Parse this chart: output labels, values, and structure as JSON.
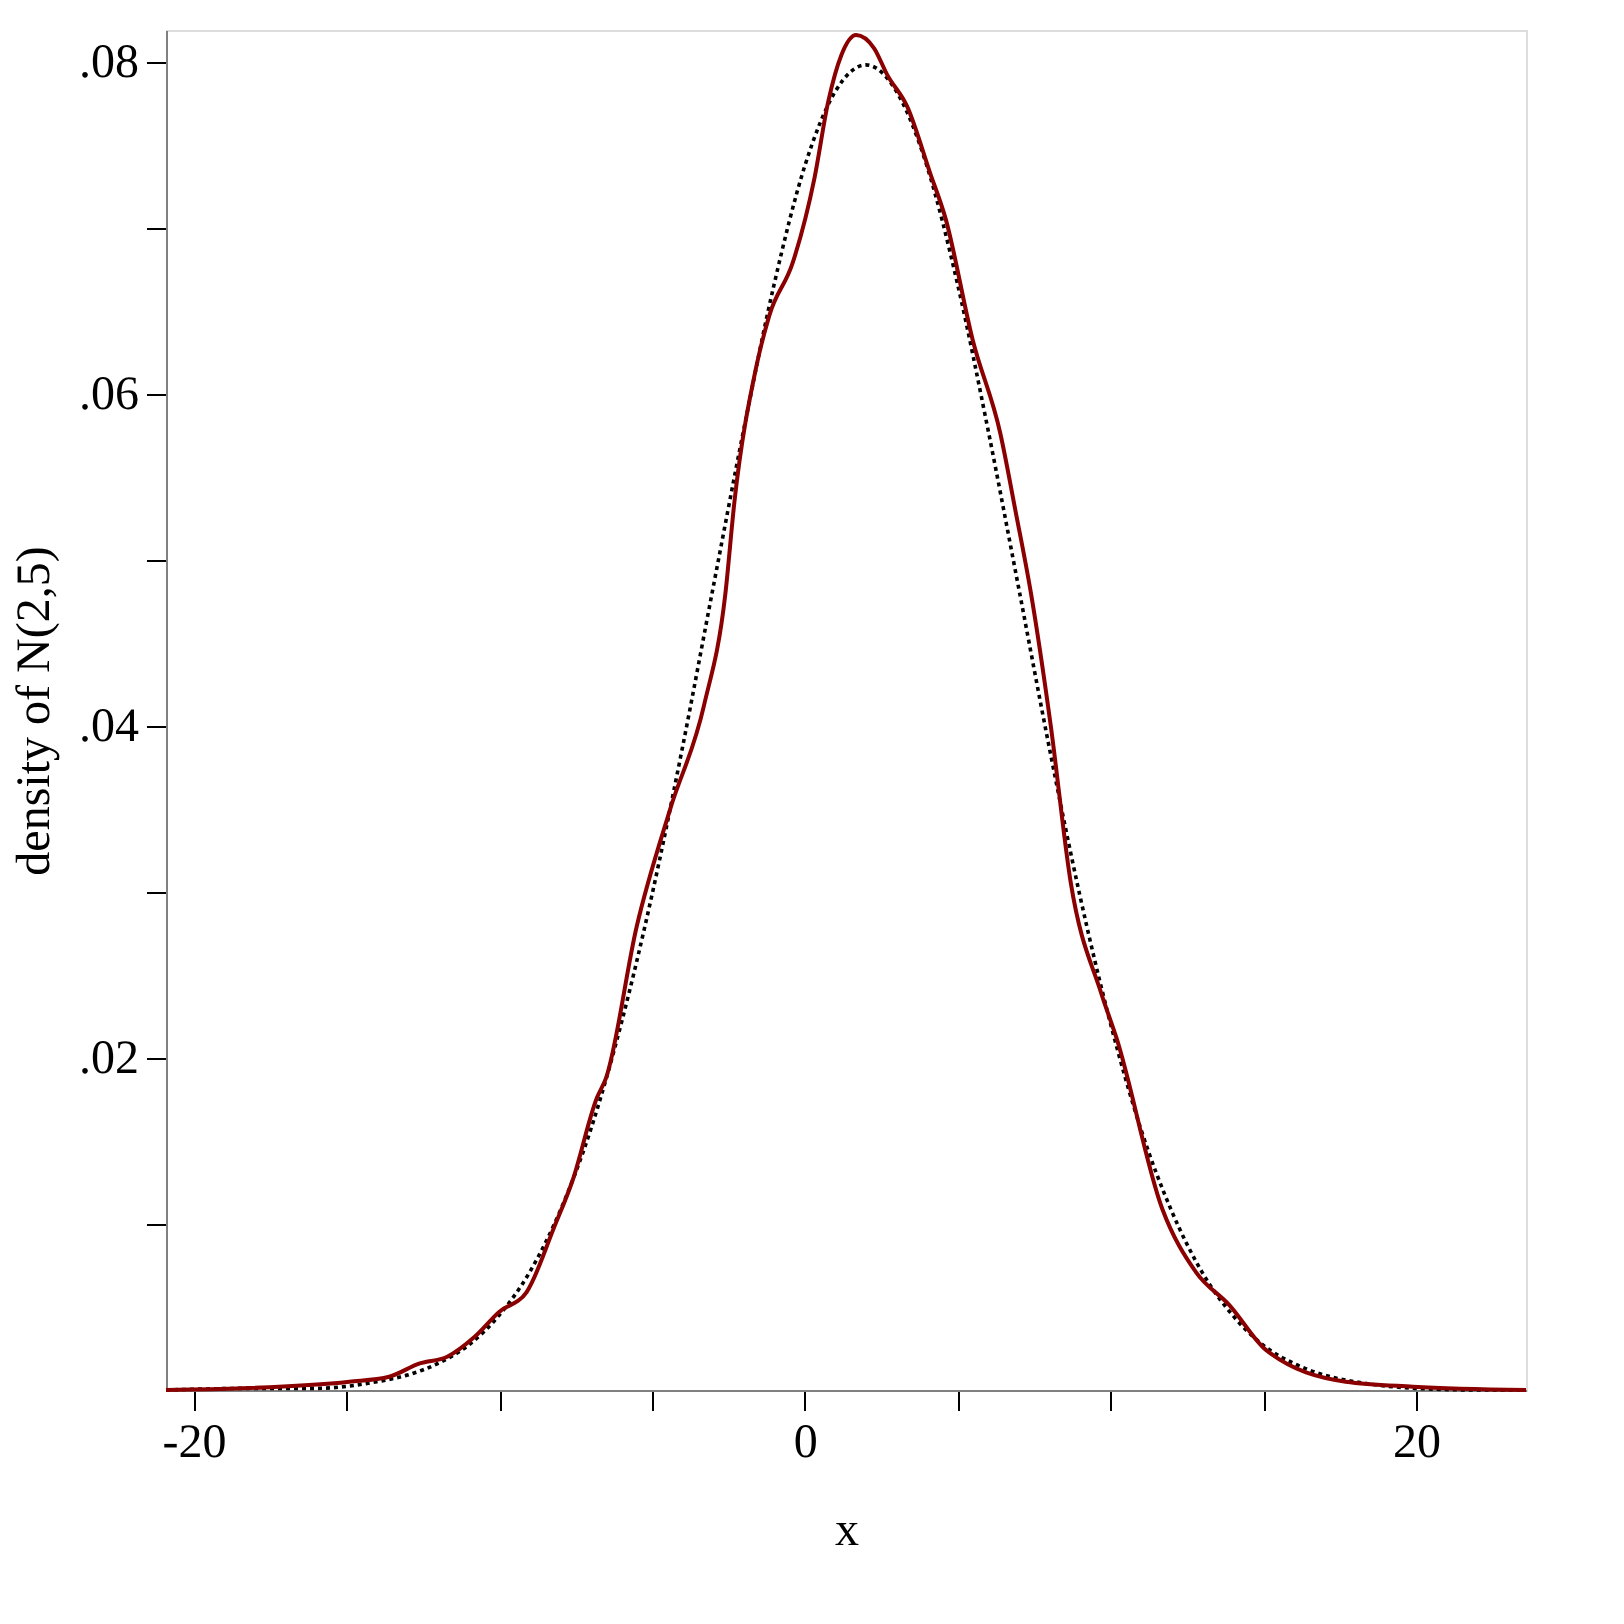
{
  "chart_data": {
    "type": "line",
    "xlabel": "x",
    "ylabel": "density of N(2,5)",
    "xlim": [
      -20.9,
      23.6
    ],
    "ylim": [
      0,
      0.0819
    ],
    "xticks": [
      -20,
      {
        "value": -15,
        "label": null
      },
      {
        "value": -10,
        "label": null
      },
      {
        "value": -5,
        "label": null
      },
      0,
      {
        "value": 5,
        "label": null
      },
      {
        "value": 10,
        "label": null
      },
      {
        "value": 15,
        "label": null
      },
      20
    ],
    "yticks": [
      {
        "value": 0.01,
        "label": null
      },
      {
        "value": 0.02,
        "label": ".02"
      },
      {
        "value": 0.03,
        "label": null
      },
      {
        "value": 0.04,
        "label": ".04"
      },
      {
        "value": 0.05,
        "label": null
      },
      {
        "value": 0.06,
        "label": ".06"
      },
      {
        "value": 0.07,
        "label": null
      },
      {
        "value": 0.08,
        "label": ".08"
      }
    ],
    "grid": false,
    "series": [
      {
        "color": "#000000",
        "line_style": "dotted",
        "x": [
          -20.9,
          -18,
          -16,
          -14,
          -13,
          -12,
          -11,
          -10,
          -9,
          -8,
          -7,
          -6,
          -5,
          -4,
          -3,
          -2,
          -1,
          0,
          1,
          2,
          3,
          4,
          5,
          6,
          7,
          8,
          9,
          10,
          11,
          12,
          13,
          14,
          15,
          16,
          17,
          18,
          20,
          22,
          23.6
        ],
        "values": [
          0,
          0.0001,
          0.0001,
          0.0005,
          0.0009,
          0.0016,
          0.0027,
          0.0045,
          0.0071,
          0.0108,
          0.0157,
          0.0221,
          0.0298,
          0.0387,
          0.0483,
          0.0578,
          0.0666,
          0.0737,
          0.0782,
          0.0798,
          0.0782,
          0.0737,
          0.0666,
          0.0578,
          0.0483,
          0.0387,
          0.0298,
          0.0221,
          0.0157,
          0.0108,
          0.0071,
          0.0045,
          0.0027,
          0.0016,
          0.0009,
          0.0005,
          0.0001,
          0,
          0
        ]
      },
      {
        "color": "#8b0000",
        "line_style": "solid",
        "x": [
          -20.9,
          -18.4,
          -14.9,
          -13.6,
          -12.6,
          -11.7,
          -10.8,
          -10,
          -9.1,
          -8.2,
          -7.6,
          -6.8,
          -6.5,
          -5.5,
          -4.4,
          -3.3,
          -2.6,
          -2.3,
          -1.6,
          -1.16,
          -0.39,
          0.32,
          0.77,
          1.2,
          1.68,
          2.27,
          2.7,
          3.35,
          4.1,
          4.6,
          5.5,
          6.4,
          6.9,
          7.4,
          8.05,
          8.7,
          9.7,
          10.2,
          11.7,
          12.8,
          13.9,
          15.1,
          17.7,
          19.9,
          23.6
        ],
        "values": [
          0,
          0.0001,
          0.0005,
          0.0008,
          0.0016,
          0.002,
          0.0032,
          0.0047,
          0.0059,
          0.0098,
          0.0126,
          0.0176,
          0.0188,
          0.0279,
          0.035,
          0.0412,
          0.0479,
          0.0535,
          0.0615,
          0.0647,
          0.0679,
          0.073,
          0.0776,
          0.0804,
          0.0816,
          0.0808,
          0.0792,
          0.0773,
          0.0733,
          0.0706,
          0.0632,
          0.0576,
          0.0529,
          0.048,
          0.04,
          0.0306,
          0.0239,
          0.0212,
          0.0109,
          0.0071,
          0.0051,
          0.0024,
          0.0005,
          0.0002,
          0
        ]
      }
    ]
  }
}
